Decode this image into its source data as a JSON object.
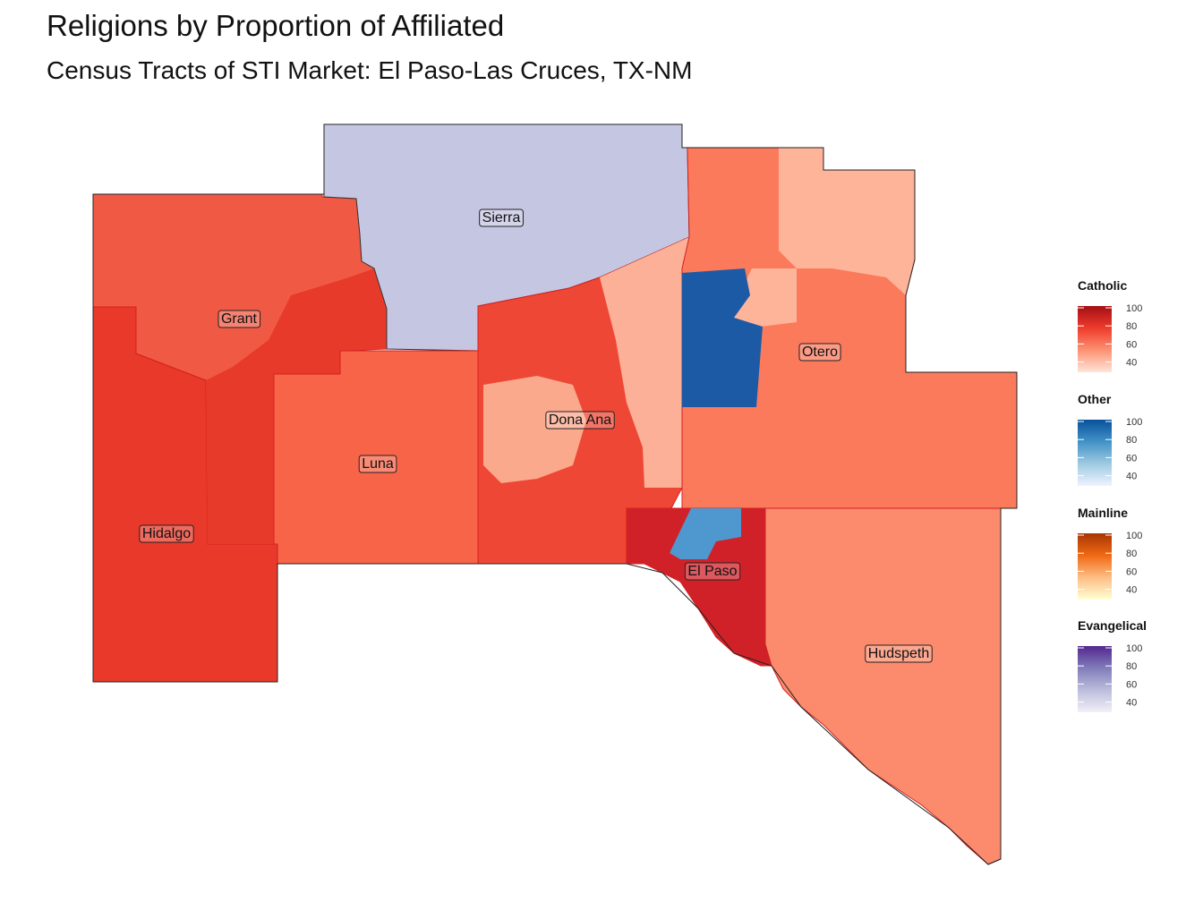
{
  "title": "Religions by Proportion of Affiliated",
  "subtitle": "Census Tracts of STI Market: El Paso-Las Cruces, TX-NM",
  "counties": [
    {
      "name": "Sierra",
      "religion": "Evangelical"
    },
    {
      "name": "Grant",
      "religion": "Catholic"
    },
    {
      "name": "Hidalgo",
      "religion": "Catholic"
    },
    {
      "name": "Luna",
      "religion": "Catholic"
    },
    {
      "name": "Dona Ana",
      "religion": "Catholic"
    },
    {
      "name": "Otero",
      "religion": "Catholic"
    },
    {
      "name": "El Paso",
      "religion": "Catholic"
    },
    {
      "name": "Hudspeth",
      "religion": "Catholic"
    }
  ],
  "legend": [
    {
      "title": "Catholic",
      "ticks": [
        "100",
        "80",
        "60",
        "40"
      ],
      "colors": [
        "#a50f15",
        "#ef3b2c",
        "#fc9272",
        "#fee5d9"
      ]
    },
    {
      "title": "Other",
      "ticks": [
        "100",
        "80",
        "60",
        "40"
      ],
      "colors": [
        "#08519c",
        "#4292c6",
        "#9ecae1",
        "#eff3ff"
      ]
    },
    {
      "title": "Mainline",
      "ticks": [
        "100",
        "80",
        "60",
        "40"
      ],
      "colors": [
        "#a63603",
        "#f16913",
        "#fdbe85",
        "#ffffd4"
      ]
    },
    {
      "title": "Evangelical",
      "ticks": [
        "100",
        "80",
        "60",
        "40"
      ],
      "colors": [
        "#54278f",
        "#807dba",
        "#bcbddc",
        "#f2f0f7"
      ]
    }
  ]
}
